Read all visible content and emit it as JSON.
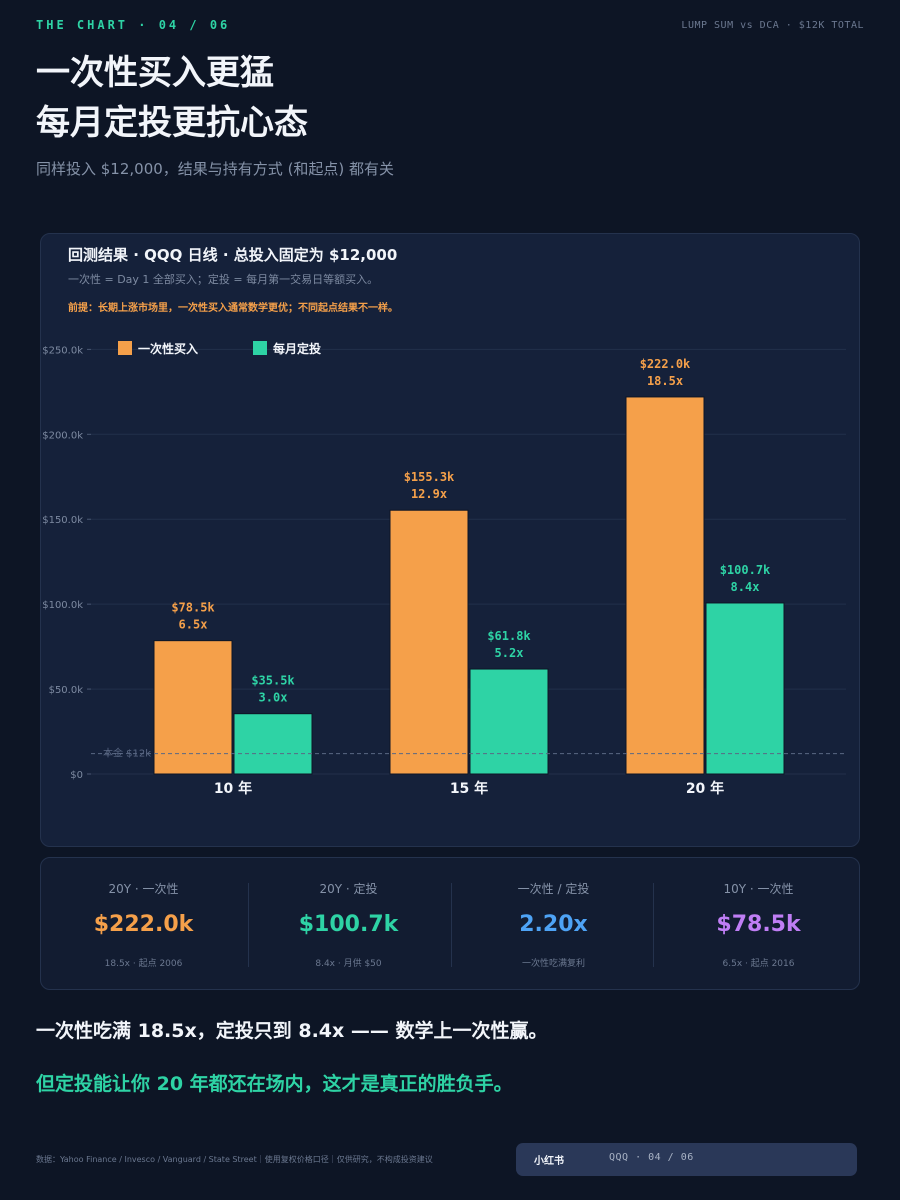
{
  "header": {
    "kicker": "THE CHART · 04 / 06",
    "topright": "LUMP SUM vs DCA · $12K TOTAL",
    "headline_line1": "一次性买入更猛",
    "headline_line2": "每月定投更抗心态",
    "subtitle": "同样投入 $12,000，结果与持有方式 (和起点) 都有关"
  },
  "card": {
    "title": "回测结果 · QQQ 日线 · 总投入固定为 $12,000",
    "subtitle": "一次性 = Day 1 全部买入；定投 = 每月第一交易日等额买入。",
    "note": "前提：长期上涨市场里，一次性买入通常数学更优；不同起点结果不一样。"
  },
  "chart_data": {
    "type": "bar",
    "categories": [
      "10 年",
      "15 年",
      "20 年"
    ],
    "series": [
      {
        "name": "一次性买入",
        "color": "#f5a04a",
        "values": [
          78500,
          155300,
          222000
        ],
        "labels": [
          "$78.5k",
          "$155.3k",
          "$222.0k"
        ],
        "multiples": [
          "6.5x",
          "12.9x",
          "18.5x"
        ]
      },
      {
        "name": "每月定投",
        "color": "#2ed3a5",
        "values": [
          35500,
          61800,
          100700
        ],
        "labels": [
          "$35.5k",
          "$61.8k",
          "$100.7k"
        ],
        "multiples": [
          "3.0x",
          "5.2x",
          "8.4x"
        ]
      }
    ],
    "yticks": [
      0,
      50000,
      100000,
      150000,
      200000,
      250000
    ],
    "ytick_labels": [
      "$0",
      "$50.0k",
      "$100.0k",
      "$150.0k",
      "$200.0k",
      "$250.0k"
    ],
    "ylim": [
      0,
      262000
    ],
    "reference_line": {
      "value": 12000,
      "label": "本金 $12k"
    },
    "legend_position": "top-left",
    "grid": true
  },
  "stats": [
    {
      "label": "20Y · 一次性",
      "value": "$222.0k",
      "foot": "18.5x · 起点 2006",
      "color": "#f5a04a"
    },
    {
      "label": "20Y · 定投",
      "value": "$100.7k",
      "foot": "8.4x · 月供 $50",
      "color": "#2ed3a5"
    },
    {
      "label": "一次性 / 定投",
      "value": "2.20x",
      "foot": "一次性吃满复利",
      "color": "#4ea3f5"
    },
    {
      "label": "10Y · 一次性",
      "value": "$78.5k",
      "foot": "6.5x · 起点 2016",
      "color": "#c07ef5"
    }
  ],
  "conclusion": {
    "line1": "一次性吃满 18.5x，定投只到 8.4x —— 数学上一次性赢。",
    "line2": "但定投能让你 20 年都还在场内，这才是真正的胜负手。"
  },
  "footer": {
    "source": "数据：Yahoo Finance / Invesco / Vanguard / State Street｜使用复权价格口径｜仅供研究，不构成投资建议",
    "brand": "小红书",
    "page": "QQQ · 04 / 06"
  }
}
